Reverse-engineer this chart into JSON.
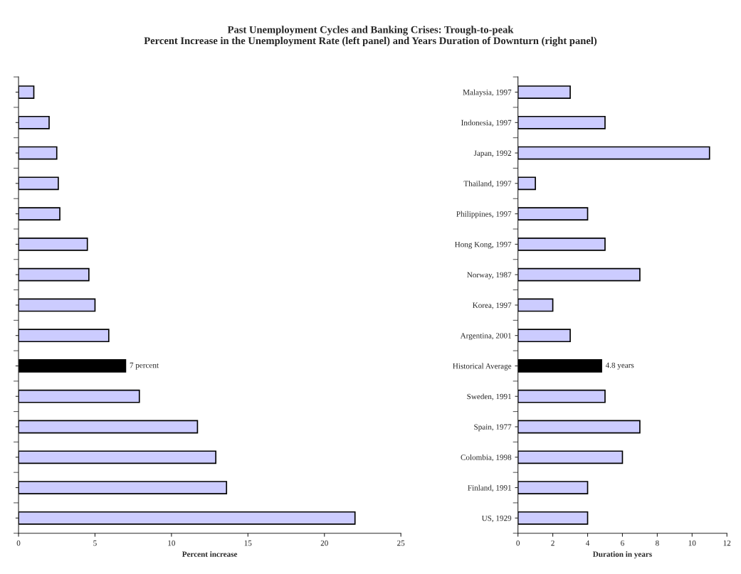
{
  "chart_data": [
    {
      "type": "bar",
      "orientation": "horizontal",
      "title": "Past Unemployment Cycles and Banking Crises: Trough-to-peak\nPercent Increase in the Unemployment Rate (left panel) and Years Duration of Downturn (right panel)",
      "xlabel": "Percent increase",
      "categories": [
        null,
        null,
        null,
        null,
        null,
        null,
        null,
        null,
        null,
        null,
        null,
        null,
        null,
        null,
        null
      ],
      "values": [
        1.0,
        2.0,
        2.5,
        2.6,
        2.7,
        4.5,
        4.6,
        5.0,
        5.9,
        7.0,
        7.9,
        11.7,
        12.9,
        13.6,
        22.0
      ],
      "colors": [
        "#ccccff",
        "#ccccff",
        "#ccccff",
        "#ccccff",
        "#ccccff",
        "#ccccff",
        "#ccccff",
        "#ccccff",
        "#ccccff",
        "#000000",
        "#ccccff",
        "#ccccff",
        "#ccccff",
        "#ccccff",
        "#ccccff"
      ],
      "xlim": [
        0,
        25
      ],
      "xticks": [
        0,
        5,
        10,
        15,
        20,
        25
      ],
      "grid": false,
      "annotations": [
        {
          "text": "7 percent",
          "x": 7
        }
      ]
    },
    {
      "type": "bar",
      "orientation": "horizontal",
      "xlabel": "Duration in years",
      "categories": [
        "Malaysia, 1997",
        "Indonesia, 1997",
        "Japan, 1992",
        "Thailand, 1997",
        "Philippines, 1997",
        "Hong Kong, 1997",
        "Norway, 1987",
        "Korea, 1997",
        "Argentina, 2001",
        "Historical Average",
        "Sweden, 1991",
        "Spain, 1977",
        "Colombia, 1998",
        "Finland, 1991",
        "US, 1929"
      ],
      "values": [
        3,
        5,
        11,
        1,
        4,
        5,
        7,
        2,
        3,
        4.8,
        5,
        7,
        6,
        4,
        4
      ],
      "colors": [
        "#ccccff",
        "#ccccff",
        "#ccccff",
        "#ccccff",
        "#ccccff",
        "#ccccff",
        "#ccccff",
        "#ccccff",
        "#ccccff",
        "#000000",
        "#ccccff",
        "#ccccff",
        "#ccccff",
        "#ccccff",
        "#ccccff"
      ],
      "xlim": [
        0,
        12
      ],
      "xticks": [
        0,
        2,
        4,
        6,
        8,
        10,
        12
      ],
      "grid": false,
      "annotations": [
        {
          "text": "4.8 years",
          "x": 4.8,
          "y": "Historical Average"
        }
      ]
    }
  ]
}
